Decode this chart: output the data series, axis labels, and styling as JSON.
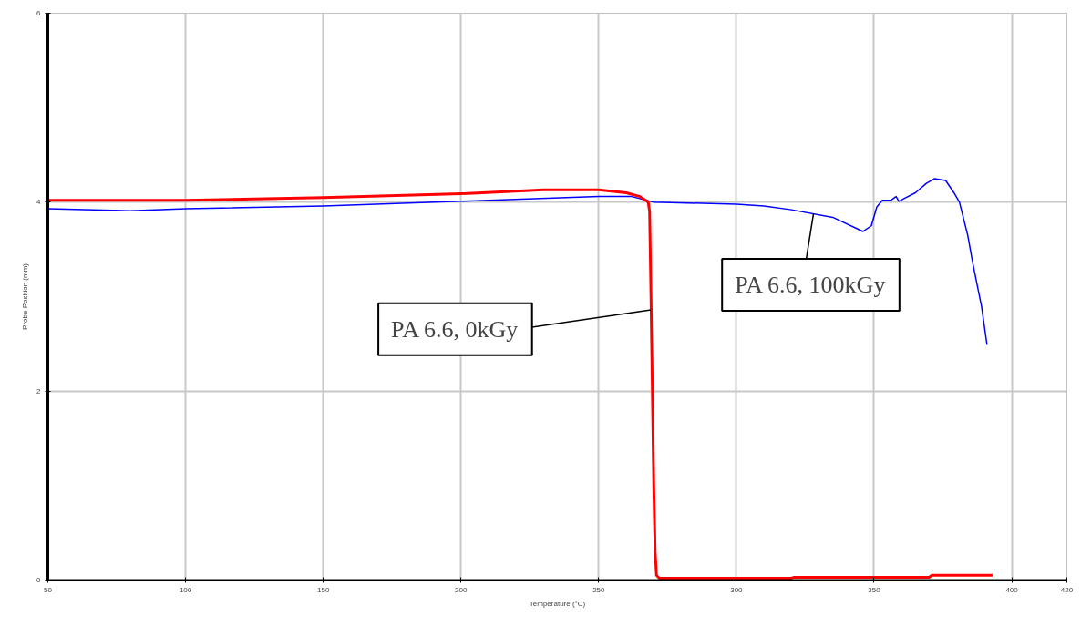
{
  "chart_data": {
    "type": "line",
    "xlabel": "Temperature (°C)",
    "ylabel": "Probe Position (mm)",
    "xlim": [
      50,
      420
    ],
    "ylim": [
      0,
      6
    ],
    "xticks": [
      50,
      100,
      150,
      200,
      250,
      300,
      350,
      400,
      420
    ],
    "yticks": [
      0,
      2,
      4,
      6
    ],
    "grid": true,
    "series": [
      {
        "color": "#0000ff",
        "x": [
          50,
          80,
          100,
          150,
          200,
          250,
          262,
          270,
          300,
          310,
          320,
          335,
          346,
          349,
          351,
          353,
          356,
          358,
          359,
          361,
          365,
          369,
          372,
          376,
          379,
          381,
          384,
          386,
          389,
          391
        ],
        "values": [
          3.93,
          3.91,
          3.93,
          3.96,
          4.01,
          4.06,
          4.06,
          4.0,
          3.98,
          3.96,
          3.92,
          3.84,
          3.69,
          3.75,
          3.95,
          4.02,
          4.02,
          4.06,
          4.01,
          4.04,
          4.1,
          4.2,
          4.25,
          4.23,
          4.1,
          4.0,
          3.65,
          3.33,
          2.9,
          2.49
        ]
      },
      {
        "color": "#ff0000",
        "x": [
          50,
          100,
          150,
          200,
          230,
          250,
          260,
          265,
          268,
          268.5,
          269,
          269.5,
          270,
          270.5,
          271,
          272,
          320,
          321,
          370,
          371,
          393
        ],
        "values": [
          4.02,
          4.02,
          4.05,
          4.09,
          4.13,
          4.13,
          4.1,
          4.06,
          4.0,
          3.9,
          3.0,
          2.0,
          1.0,
          0.3,
          0.05,
          0.02,
          0.02,
          0.03,
          0.03,
          0.05,
          0.05
        ]
      }
    ],
    "annotations": [
      {
        "text": "PA 6.6, 0kGy",
        "x": 269,
        "y": 2.86
      },
      {
        "text": "PA 6.6, 100kGy",
        "x": 328,
        "y": 3.88
      }
    ]
  }
}
